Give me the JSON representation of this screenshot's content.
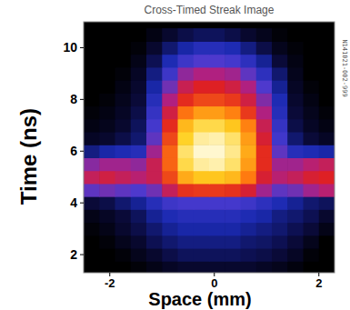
{
  "chart_data": {
    "type": "heatmap",
    "title": "Cross-Timed Streak Image",
    "x_label": "Space (mm)",
    "y_label": "Time (ns)",
    "annotation": "N141021-002-999",
    "xlim": [
      -2.5,
      2.3
    ],
    "ylim": [
      1.3,
      11
    ],
    "xticks": [
      -2,
      0,
      2
    ],
    "yticks": [
      2,
      4,
      6,
      8,
      10
    ],
    "x": [
      -2.35,
      -2.05,
      -1.75,
      -1.45,
      -1.15,
      -0.85,
      -0.55,
      -0.25,
      0.05,
      0.35,
      0.65,
      0.95,
      1.25,
      1.55,
      1.85,
      2.15
    ],
    "y": [
      1.5,
      2.0,
      2.5,
      3.0,
      3.5,
      4.0,
      4.5,
      5.0,
      5.5,
      6.0,
      6.5,
      7.0,
      7.5,
      8.0,
      8.5,
      9.0,
      9.5,
      10.0,
      10.5
    ],
    "z": [
      [
        0,
        0,
        0,
        2,
        5,
        8,
        10,
        10,
        10,
        10,
        10,
        8,
        6,
        3,
        0,
        0
      ],
      [
        0,
        0,
        2,
        6,
        10,
        14,
        16,
        16,
        16,
        16,
        15,
        14,
        12,
        8,
        2,
        0
      ],
      [
        0,
        2,
        6,
        10,
        15,
        18,
        20,
        20,
        20,
        20,
        18,
        17,
        15,
        12,
        6,
        0
      ],
      [
        2,
        5,
        10,
        14,
        18,
        22,
        24,
        24,
        24,
        24,
        22,
        20,
        18,
        15,
        12,
        5
      ],
      [
        5,
        8,
        12,
        16,
        22,
        26,
        28,
        28,
        28,
        28,
        26,
        24,
        20,
        18,
        15,
        10
      ],
      [
        12,
        14,
        18,
        22,
        28,
        34,
        36,
        36,
        36,
        36,
        34,
        30,
        26,
        22,
        18,
        16
      ],
      [
        40,
        42,
        40,
        38,
        42,
        55,
        65,
        66,
        66,
        65,
        60,
        48,
        40,
        42,
        48,
        52
      ],
      [
        55,
        58,
        55,
        52,
        56,
        68,
        82,
        86,
        86,
        84,
        75,
        60,
        52,
        55,
        60,
        62
      ],
      [
        45,
        48,
        48,
        46,
        56,
        72,
        90,
        95,
        96,
        92,
        80,
        64,
        48,
        48,
        52,
        55
      ],
      [
        20,
        24,
        26,
        28,
        48,
        72,
        92,
        98,
        98,
        94,
        82,
        64,
        40,
        28,
        26,
        24
      ],
      [
        8,
        10,
        14,
        18,
        40,
        68,
        88,
        95,
        96,
        92,
        80,
        60,
        35,
        18,
        12,
        8
      ],
      [
        4,
        6,
        10,
        16,
        36,
        64,
        84,
        90,
        90,
        86,
        76,
        56,
        32,
        14,
        8,
        4
      ],
      [
        2,
        4,
        8,
        14,
        32,
        58,
        74,
        80,
        80,
        76,
        66,
        50,
        28,
        12,
        6,
        2
      ],
      [
        0,
        2,
        6,
        12,
        28,
        50,
        64,
        68,
        68,
        66,
        58,
        44,
        26,
        10,
        4,
        0
      ],
      [
        0,
        0,
        4,
        10,
        24,
        42,
        56,
        62,
        62,
        58,
        50,
        38,
        22,
        8,
        2,
        0
      ],
      [
        0,
        0,
        2,
        8,
        20,
        34,
        46,
        50,
        50,
        48,
        40,
        30,
        18,
        6,
        0,
        0
      ],
      [
        0,
        0,
        0,
        5,
        15,
        26,
        34,
        38,
        38,
        36,
        30,
        22,
        12,
        4,
        0,
        0
      ],
      [
        0,
        0,
        0,
        2,
        10,
        18,
        24,
        28,
        28,
        26,
        20,
        14,
        6,
        2,
        0,
        0
      ],
      [
        0,
        0,
        0,
        0,
        4,
        10,
        14,
        16,
        16,
        14,
        10,
        6,
        2,
        0,
        0,
        0
      ]
    ],
    "zlim": [
      0,
      100
    ],
    "colors": [
      "#000000",
      "#0a0a3a",
      "#1a2ab0",
      "#4a3ad0",
      "#b02080",
      "#e02020",
      "#ff7a10",
      "#ffd020",
      "#fffff0"
    ]
  }
}
